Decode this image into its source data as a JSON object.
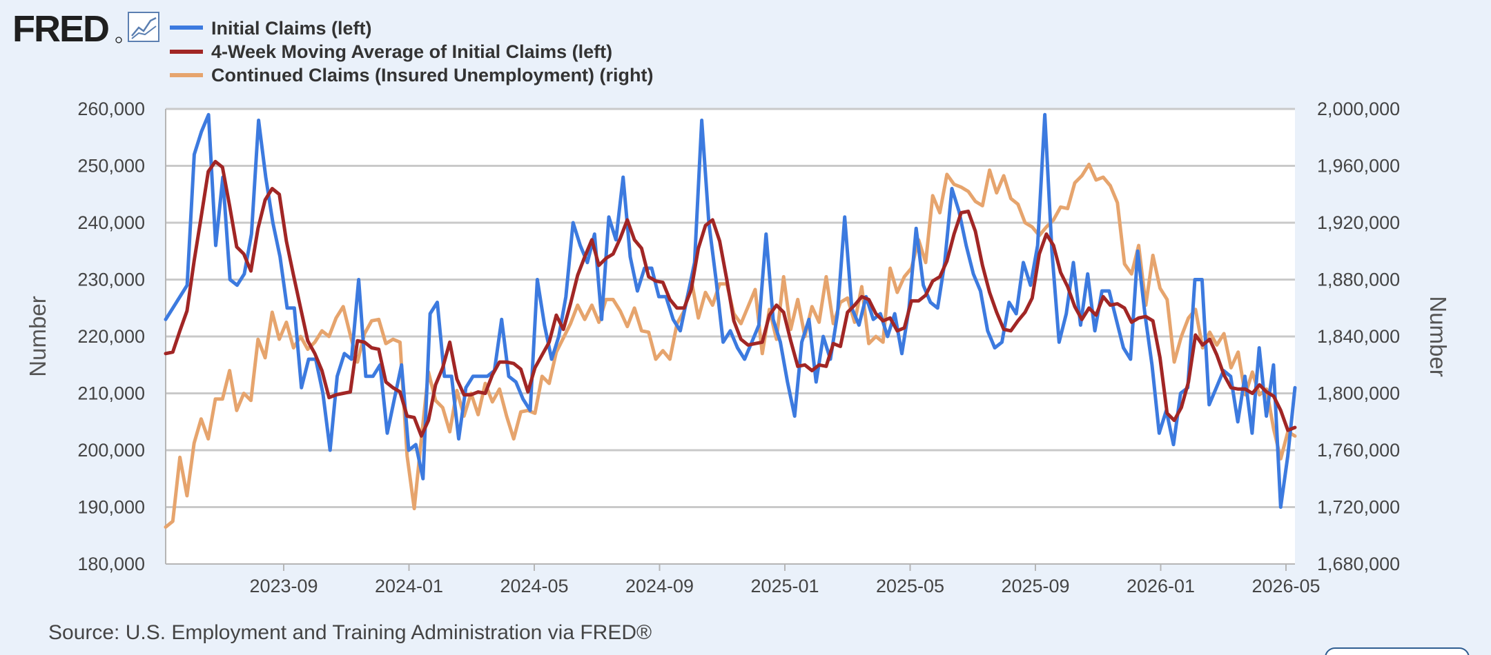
{
  "brand": {
    "name": "FRED"
  },
  "colors": {
    "initial": "#3c7adf",
    "ma": "#a12625",
    "continued": "#e6a46d",
    "grid": "#c9c9c9",
    "background": "#eaf1fa"
  },
  "source": "Source: U.S. Employment and Training Administration via FRED®",
  "chart_data": {
    "type": "line",
    "left_axis": {
      "label": "Number",
      "min": 180000,
      "max": 260000,
      "ticks": [
        "180,000",
        "190,000",
        "200,000",
        "210,000",
        "220,000",
        "230,000",
        "240,000",
        "250,000",
        "260,000"
      ]
    },
    "right_axis": {
      "label": "Number",
      "min": 1680000,
      "max": 2000000,
      "ticks": [
        "1,680,000",
        "1,720,000",
        "1,760,000",
        "1,800,000",
        "1,840,000",
        "1,880,000",
        "1,920,000",
        "1,960,000",
        "2,000,000"
      ]
    },
    "x_axis": {
      "ticks": [
        "2023-09",
        "2024-01",
        "2024-05",
        "2024-09",
        "2025-01",
        "2025-05",
        "2025-09",
        "2026-01",
        "2026-05"
      ]
    },
    "legend_position": "top-left",
    "grid": true,
    "series": [
      {
        "name": "Initial Claims (left)",
        "axis": "left",
        "color": "#3c7adf",
        "values": [
          223000,
          225000,
          227000,
          229000,
          252000,
          256000,
          259000,
          236000,
          248000,
          230000,
          229000,
          231000,
          238000,
          258000,
          248000,
          240000,
          234000,
          225000,
          225000,
          211000,
          216000,
          216000,
          210000,
          200000,
          213000,
          217000,
          216000,
          230000,
          213000,
          213000,
          215000,
          203000,
          209000,
          215000,
          200000,
          201000,
          195000,
          224000,
          226000,
          213000,
          213000,
          202000,
          211000,
          213000,
          213000,
          213000,
          214000,
          223000,
          213000,
          212000,
          209000,
          207000,
          230000,
          222000,
          216000,
          220000,
          227000,
          240000,
          236000,
          233000,
          238000,
          223000,
          241000,
          237000,
          248000,
          234000,
          228000,
          232000,
          232000,
          227000,
          227000,
          223000,
          221000,
          227000,
          233000,
          258000,
          240000,
          230000,
          219000,
          221000,
          218000,
          216000,
          219000,
          222000,
          238000,
          223000,
          219000,
          212000,
          206000,
          219000,
          223000,
          212000,
          220000,
          216000,
          224000,
          241000,
          225000,
          222000,
          227000,
          223000,
          224000,
          220000,
          224000,
          217000,
          225000,
          239000,
          229000,
          226000,
          225000,
          233000,
          246000,
          242000,
          236000,
          231000,
          228000,
          221000,
          218000,
          219000,
          226000,
          224000,
          233000,
          229000,
          236000,
          259000,
          235000,
          219000,
          224000,
          233000,
          222000,
          231000,
          221000,
          228000,
          228000,
          223000,
          218000,
          216000,
          235000,
          224000,
          215000,
          203000,
          207000,
          201000,
          210000,
          211000,
          230000,
          230000,
          208000,
          211000,
          214000,
          213000,
          205000,
          213000,
          203000,
          218000,
          206000,
          215000,
          190000,
          199000,
          211000
        ]
      },
      {
        "name": "4-Week Moving Average of Initial Claims (left)",
        "axis": "left",
        "color": "#a12625",
        "values": [
          217000,
          217250,
          221000,
          224500,
          233250,
          241000,
          249000,
          250750,
          249750,
          243000,
          235750,
          234500,
          231500,
          239000,
          244000,
          246000,
          245000,
          236750,
          230750,
          225000,
          219250,
          217000,
          214000,
          209250,
          209750,
          210000,
          210250,
          219250,
          219000,
          218000,
          217750,
          212000,
          211000,
          210250,
          206000,
          205750,
          202500,
          205250,
          211500,
          214500,
          219000,
          212500,
          209750,
          209750,
          210250,
          210000,
          213250,
          215500,
          215500,
          215250,
          214250,
          210250,
          214500,
          216750,
          219000,
          223750,
          221250,
          225750,
          230750,
          234000,
          237000,
          232500,
          233750,
          234500,
          237250,
          240500,
          237000,
          235500,
          230500,
          229750,
          229500,
          226500,
          225000,
          225000,
          228250,
          235500,
          239500,
          240500,
          236750,
          230000,
          222750,
          219500,
          218500,
          218750,
          219000,
          223750,
          225500,
          224250,
          219250,
          214750,
          215000,
          214000,
          215000,
          214750,
          218750,
          218250,
          224250,
          225500,
          227000,
          226500,
          224000,
          222750,
          223250,
          221000,
          221500,
          226250,
          226250,
          227250,
          229750,
          230500,
          233250,
          238000,
          241750,
          242000,
          238500,
          232500,
          227750,
          224250,
          221250,
          221000,
          222750,
          224250,
          226750,
          234500,
          238000,
          236000,
          231250,
          228750,
          225250,
          223000,
          225000,
          223750,
          227000,
          225500,
          225750,
          225000,
          222500,
          223250,
          223500,
          222750,
          216250,
          206500,
          205250,
          207500,
          212000,
          220250,
          218500,
          219500,
          216750,
          213250,
          211000,
          210750,
          210750,
          210000,
          211500,
          210250,
          209500,
          207000,
          203500,
          204000
        ]
      },
      {
        "name": "Continued Claims (Insured Unemployment) (right)",
        "axis": "right",
        "color": "#e6a46d",
        "values": [
          1706000,
          1710000,
          1755000,
          1728000,
          1765000,
          1782000,
          1768000,
          1796000,
          1796000,
          1816000,
          1788000,
          1800000,
          1795000,
          1838000,
          1825000,
          1857000,
          1838000,
          1850000,
          1832000,
          1840000,
          1831000,
          1836000,
          1844000,
          1840000,
          1853000,
          1861000,
          1841000,
          1822000,
          1842000,
          1851000,
          1852000,
          1835000,
          1838000,
          1836000,
          1756000,
          1719000,
          1768000,
          1815000,
          1795000,
          1790000,
          1773000,
          1802000,
          1784000,
          1800000,
          1785000,
          1807000,
          1794000,
          1803000,
          1784000,
          1768000,
          1787000,
          1788000,
          1786000,
          1812000,
          1807000,
          1829000,
          1839000,
          1849000,
          1862000,
          1852000,
          1862000,
          1850000,
          1866000,
          1866000,
          1858000,
          1847000,
          1860000,
          1844000,
          1843000,
          1824000,
          1830000,
          1824000,
          1849000,
          1858000,
          1880000,
          1853000,
          1871000,
          1862000,
          1877000,
          1877000,
          1856000,
          1849000,
          1861000,
          1873000,
          1828000,
          1859000,
          1838000,
          1882000,
          1845000,
          1866000,
          1840000,
          1861000,
          1850000,
          1882000,
          1849000,
          1864000,
          1867000,
          1850000,
          1875000,
          1835000,
          1840000,
          1836000,
          1888000,
          1871000,
          1882000,
          1888000,
          1908000,
          1892000,
          1939000,
          1927000,
          1954000,
          1947000,
          1945000,
          1942000,
          1935000,
          1932000,
          1957000,
          1941000,
          1953000,
          1937000,
          1933000,
          1920000,
          1917000,
          1911000,
          1917000,
          1922000,
          1931000,
          1930000,
          1948000,
          1953000,
          1961000,
          1950000,
          1952000,
          1946000,
          1934000,
          1891000,
          1884000,
          1904000,
          1862000,
          1897000,
          1874000,
          1866000,
          1822000,
          1840000,
          1853000,
          1859000,
          1832000,
          1843000,
          1834000,
          1842000,
          1818000,
          1829000,
          1799000,
          1815000,
          1799000,
          1803000,
          1775000,
          1754000,
          1773000,
          1770000
        ]
      }
    ]
  }
}
